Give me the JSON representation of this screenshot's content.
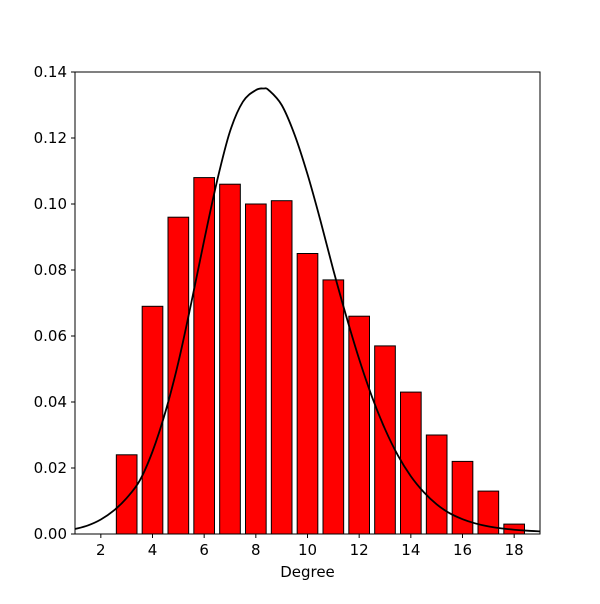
{
  "chart_data": {
    "type": "bar",
    "title": "",
    "xlabel": "Degree",
    "ylabel": "",
    "xlim": [
      1,
      19
    ],
    "ylim": [
      0,
      0.14
    ],
    "grid": false,
    "x_ticks": [
      2,
      4,
      6,
      8,
      10,
      12,
      14,
      16,
      18
    ],
    "x_tick_labels": [
      "2",
      "4",
      "6",
      "8",
      "10",
      "12",
      "14",
      "16",
      "18"
    ],
    "y_ticks": [
      0.0,
      0.02,
      0.04,
      0.06,
      0.08,
      0.1,
      0.12,
      0.14
    ],
    "y_tick_labels": [
      "0.00",
      "0.02",
      "0.04",
      "0.06",
      "0.08",
      "0.10",
      "0.12",
      "0.14"
    ],
    "bar_color": "#ff0000",
    "bar_edge_color": "#000000",
    "line_color": "#000000",
    "series": [
      {
        "type": "bar",
        "x": [
          3,
          4,
          5,
          6,
          7,
          8,
          9,
          10,
          11,
          12,
          13,
          14,
          15,
          16,
          17,
          18
        ],
        "values": [
          0.024,
          0.069,
          0.096,
          0.108,
          0.106,
          0.1,
          0.101,
          0.085,
          0.077,
          0.066,
          0.057,
          0.043,
          0.03,
          0.022,
          0.013,
          0.003
        ]
      },
      {
        "type": "line",
        "x": [
          1,
          1.5,
          2,
          2.5,
          3,
          3.5,
          4,
          4.5,
          5,
          5.5,
          6,
          6.5,
          7,
          7.5,
          8,
          8.3,
          8.5,
          9,
          9.5,
          10,
          10.5,
          11,
          11.5,
          12,
          12.5,
          13,
          13.5,
          14,
          14.5,
          15,
          15.5,
          16,
          16.5,
          17,
          17.5,
          18,
          18.5,
          19
        ],
        "y": [
          0.0015,
          0.0026,
          0.0044,
          0.0071,
          0.0109,
          0.0161,
          0.025,
          0.037,
          0.052,
          0.07,
          0.089,
          0.107,
          0.122,
          0.131,
          0.1345,
          0.135,
          0.1345,
          0.13,
          0.121,
          0.109,
          0.095,
          0.08,
          0.066,
          0.053,
          0.0415,
          0.0318,
          0.0238,
          0.0175,
          0.0127,
          0.009,
          0.0063,
          0.0045,
          0.0032,
          0.0023,
          0.0017,
          0.0013,
          0.001,
          0.0008
        ]
      }
    ]
  }
}
